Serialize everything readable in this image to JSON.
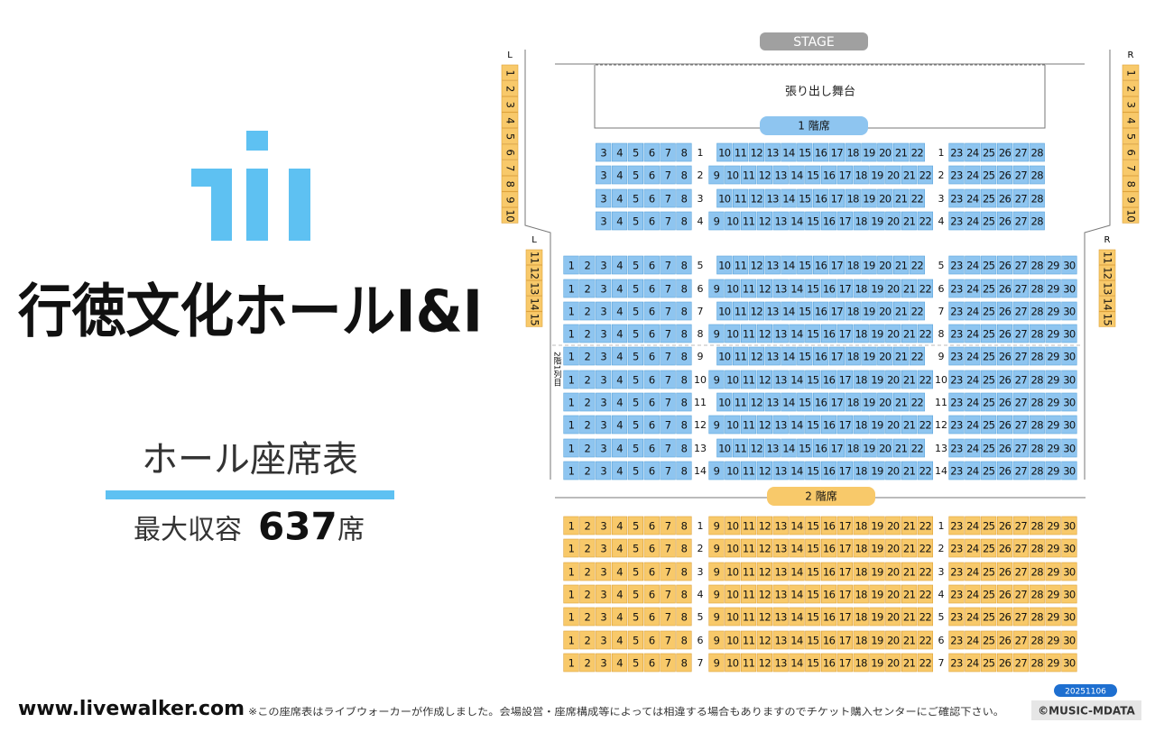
{
  "header": {
    "title": "行徳文化ホールI&I",
    "subtitle": "ホール座席表",
    "capacity_label": "最大収容",
    "capacity": "637",
    "capacity_unit": "席"
  },
  "footer": {
    "url": "www.livewalker.com",
    "note": "※この座席表はライブウォーカーが作成しました。会場設営・座席構成等によっては相違する場合もありますのでチケット購入センターにご確認下さい。",
    "date": "20251106",
    "copyright": "©MUSIC-MDATA"
  },
  "stage": {
    "label": "STAGE",
    "apron": "張り出し舞台"
  },
  "side": {
    "left_upper": {
      "label": "L",
      "seats": [
        "1",
        "2",
        "3",
        "4",
        "5",
        "6",
        "7",
        "8",
        "9",
        "10"
      ]
    },
    "right_upper": {
      "label": "R",
      "seats": [
        "1",
        "2",
        "3",
        "4",
        "5",
        "6",
        "7",
        "8",
        "9",
        "10"
      ]
    },
    "left_lower": {
      "label": "L",
      "seats": [
        "11",
        "12",
        "13",
        "14",
        "15"
      ]
    },
    "right_lower": {
      "label": "R",
      "seats": [
        "11",
        "12",
        "13",
        "14",
        "15"
      ]
    }
  },
  "floor1": {
    "label": "1 階席",
    "note": "2階1列目",
    "rows": [
      {
        "row": "1",
        "left": [
          3,
          4,
          5,
          6,
          7,
          8
        ],
        "center": [
          10,
          11,
          12,
          13,
          14,
          15,
          16,
          17,
          18,
          19,
          20,
          21,
          22
        ],
        "right": [
          23,
          24,
          25,
          26,
          27,
          28
        ]
      },
      {
        "row": "2",
        "left": [
          3,
          4,
          5,
          6,
          7,
          8
        ],
        "center": [
          9,
          10,
          11,
          12,
          13,
          14,
          15,
          16,
          17,
          18,
          19,
          20,
          21,
          22
        ],
        "right": [
          23,
          24,
          25,
          26,
          27,
          28
        ]
      },
      {
        "row": "3",
        "left": [
          3,
          4,
          5,
          6,
          7,
          8
        ],
        "center": [
          10,
          11,
          12,
          13,
          14,
          15,
          16,
          17,
          18,
          19,
          20,
          21,
          22
        ],
        "right": [
          23,
          24,
          25,
          26,
          27,
          28
        ]
      },
      {
        "row": "4",
        "left": [
          3,
          4,
          5,
          6,
          7,
          8
        ],
        "center": [
          9,
          10,
          11,
          12,
          13,
          14,
          15,
          16,
          17,
          18,
          19,
          20,
          21,
          22
        ],
        "right": [
          23,
          24,
          25,
          26,
          27,
          28
        ]
      },
      {
        "row": "5",
        "left": [
          1,
          2,
          3,
          4,
          5,
          6,
          7,
          8
        ],
        "center": [
          10,
          11,
          12,
          13,
          14,
          15,
          16,
          17,
          18,
          19,
          20,
          21,
          22
        ],
        "right": [
          23,
          24,
          25,
          26,
          27,
          28,
          29,
          30
        ]
      },
      {
        "row": "6",
        "left": [
          1,
          2,
          3,
          4,
          5,
          6,
          7,
          8
        ],
        "center": [
          9,
          10,
          11,
          12,
          13,
          14,
          15,
          16,
          17,
          18,
          19,
          20,
          21,
          22
        ],
        "right": [
          23,
          24,
          25,
          26,
          27,
          28,
          29,
          30
        ]
      },
      {
        "row": "7",
        "left": [
          1,
          2,
          3,
          4,
          5,
          6,
          7,
          8
        ],
        "center": [
          10,
          11,
          12,
          13,
          14,
          15,
          16,
          17,
          18,
          19,
          20,
          21,
          22
        ],
        "right": [
          23,
          24,
          25,
          26,
          27,
          28,
          29,
          30
        ]
      },
      {
        "row": "8",
        "left": [
          1,
          2,
          3,
          4,
          5,
          6,
          7,
          8
        ],
        "center": [
          9,
          10,
          11,
          12,
          13,
          14,
          15,
          16,
          17,
          18,
          19,
          20,
          21,
          22
        ],
        "right": [
          23,
          24,
          25,
          26,
          27,
          28,
          29,
          30
        ]
      },
      {
        "row": "9",
        "left": [
          1,
          2,
          3,
          4,
          5,
          6,
          7,
          8
        ],
        "center": [
          10,
          11,
          12,
          13,
          14,
          15,
          16,
          17,
          18,
          19,
          20,
          21,
          22
        ],
        "right": [
          23,
          24,
          25,
          26,
          27,
          28,
          29,
          30
        ]
      },
      {
        "row": "10",
        "left": [
          1,
          2,
          3,
          4,
          5,
          6,
          7,
          8
        ],
        "center": [
          9,
          10,
          11,
          12,
          13,
          14,
          15,
          16,
          17,
          18,
          19,
          20,
          21,
          22
        ],
        "right": [
          23,
          24,
          25,
          26,
          27,
          28,
          29,
          30
        ]
      },
      {
        "row": "11",
        "left": [
          1,
          2,
          3,
          4,
          5,
          6,
          7,
          8
        ],
        "center": [
          10,
          11,
          12,
          13,
          14,
          15,
          16,
          17,
          18,
          19,
          20,
          21,
          22
        ],
        "right": [
          23,
          24,
          25,
          26,
          27,
          28,
          29,
          30
        ]
      },
      {
        "row": "12",
        "left": [
          1,
          2,
          3,
          4,
          5,
          6,
          7,
          8
        ],
        "center": [
          9,
          10,
          11,
          12,
          13,
          14,
          15,
          16,
          17,
          18,
          19,
          20,
          21,
          22
        ],
        "right": [
          23,
          24,
          25,
          26,
          27,
          28,
          29,
          30
        ]
      },
      {
        "row": "13",
        "left": [
          1,
          2,
          3,
          4,
          5,
          6,
          7,
          8
        ],
        "center": [
          10,
          11,
          12,
          13,
          14,
          15,
          16,
          17,
          18,
          19,
          20,
          21,
          22
        ],
        "right": [
          23,
          24,
          25,
          26,
          27,
          28,
          29,
          30
        ]
      },
      {
        "row": "14",
        "left": [
          1,
          2,
          3,
          4,
          5,
          6,
          7,
          8
        ],
        "center": [
          9,
          10,
          11,
          12,
          13,
          14,
          15,
          16,
          17,
          18,
          19,
          20,
          21,
          22
        ],
        "right": [
          23,
          24,
          25,
          26,
          27,
          28,
          29,
          30
        ]
      }
    ]
  },
  "floor2": {
    "label": "2 階席",
    "rows": [
      {
        "row": "1",
        "left": [
          1,
          2,
          3,
          4,
          5,
          6,
          7,
          8
        ],
        "center": [
          9,
          10,
          11,
          12,
          13,
          14,
          15,
          16,
          17,
          18,
          19,
          20,
          21,
          22
        ],
        "right": [
          23,
          24,
          25,
          26,
          27,
          28,
          29,
          30
        ]
      },
      {
        "row": "2",
        "left": [
          1,
          2,
          3,
          4,
          5,
          6,
          7,
          8
        ],
        "center": [
          9,
          10,
          11,
          12,
          13,
          14,
          15,
          16,
          17,
          18,
          19,
          20,
          21,
          22
        ],
        "right": [
          23,
          24,
          25,
          26,
          27,
          28,
          29,
          30
        ]
      },
      {
        "row": "3",
        "left": [
          1,
          2,
          3,
          4,
          5,
          6,
          7,
          8
        ],
        "center": [
          9,
          10,
          11,
          12,
          13,
          14,
          15,
          16,
          17,
          18,
          19,
          20,
          21,
          22
        ],
        "right": [
          23,
          24,
          25,
          26,
          27,
          28,
          29,
          30
        ]
      },
      {
        "row": "4",
        "left": [
          1,
          2,
          3,
          4,
          5,
          6,
          7,
          8
        ],
        "center": [
          9,
          10,
          11,
          12,
          13,
          14,
          15,
          16,
          17,
          18,
          19,
          20,
          21,
          22
        ],
        "right": [
          23,
          24,
          25,
          26,
          27,
          28,
          29,
          30
        ]
      },
      {
        "row": "5",
        "left": [
          1,
          2,
          3,
          4,
          5,
          6,
          7,
          8
        ],
        "center": [
          9,
          10,
          11,
          12,
          13,
          14,
          15,
          16,
          17,
          18,
          19,
          20,
          21,
          22
        ],
        "right": [
          23,
          24,
          25,
          26,
          27,
          28,
          29,
          30
        ]
      },
      {
        "row": "6",
        "left": [
          1,
          2,
          3,
          4,
          5,
          6,
          7,
          8
        ],
        "center": [
          9,
          10,
          11,
          12,
          13,
          14,
          15,
          16,
          17,
          18,
          19,
          20,
          21,
          22
        ],
        "right": [
          23,
          24,
          25,
          26,
          27,
          28,
          29,
          30
        ]
      },
      {
        "row": "7",
        "left": [
          1,
          2,
          3,
          4,
          5,
          6,
          7,
          8
        ],
        "center": [
          9,
          10,
          11,
          12,
          13,
          14,
          15,
          16,
          17,
          18,
          19,
          20,
          21,
          22
        ],
        "right": [
          23,
          24,
          25,
          26,
          27,
          28,
          29,
          30
        ]
      }
    ]
  }
}
